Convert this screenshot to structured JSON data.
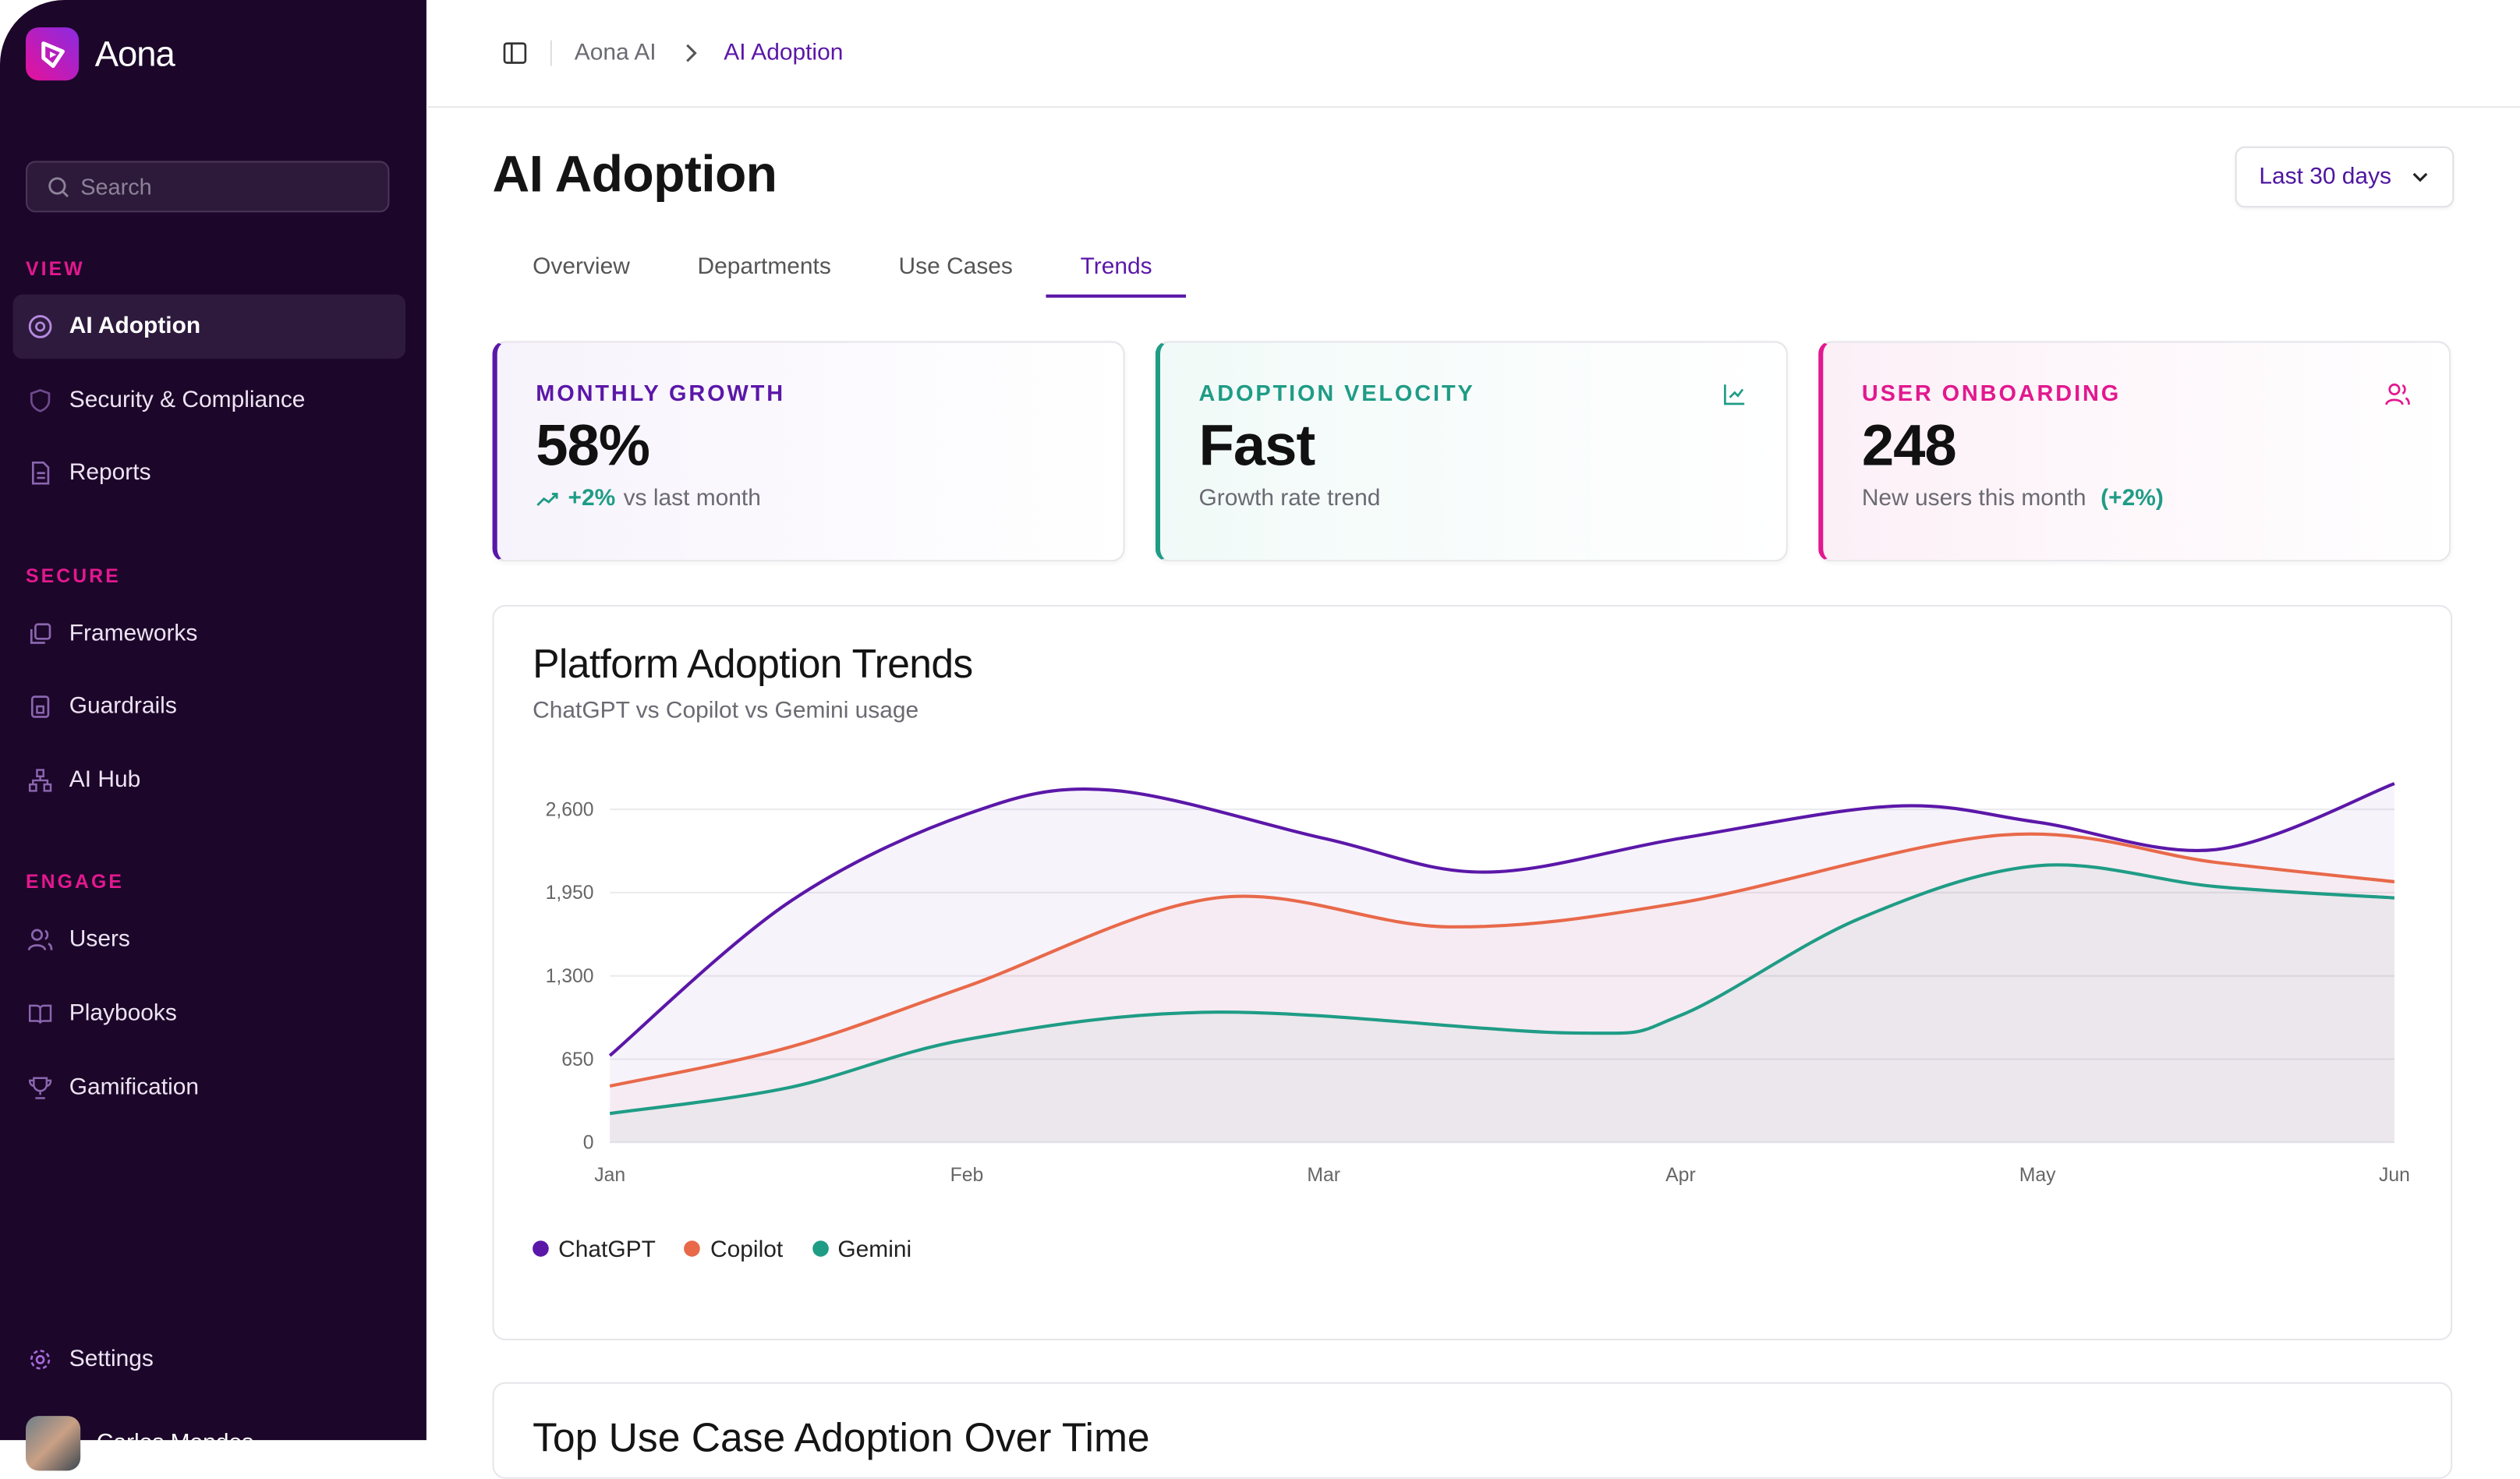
{
  "app": {
    "name": "Aona"
  },
  "sidebar": {
    "search_placeholder": "Search",
    "sections": [
      {
        "title": "VIEW",
        "items": [
          {
            "label": "AI Adoption",
            "icon": "aperture-icon",
            "active": true
          },
          {
            "label": "Security & Compliance",
            "icon": "shield-icon"
          },
          {
            "label": "Reports",
            "icon": "file-icon"
          }
        ]
      },
      {
        "title": "SECURE",
        "items": [
          {
            "label": "Frameworks",
            "icon": "layers-icon"
          },
          {
            "label": "Guardrails",
            "icon": "lock-icon"
          },
          {
            "label": "AI Hub",
            "icon": "network-icon"
          }
        ]
      },
      {
        "title": "ENGAGE",
        "items": [
          {
            "label": "Users",
            "icon": "user-icon"
          },
          {
            "label": "Playbooks",
            "icon": "book-icon"
          },
          {
            "label": "Gamification",
            "icon": "trophy-icon"
          }
        ]
      }
    ],
    "settings": "Settings",
    "user_name": "Carlos Mendes"
  },
  "breadcrumb": {
    "parent": "Aona AI",
    "current": "AI Adoption"
  },
  "page": {
    "title": "AI Adoption",
    "range": "Last 30 days"
  },
  "tabs": [
    "Overview",
    "Departments",
    "Use Cases",
    "Trends"
  ],
  "active_tab": "Trends",
  "cards": [
    {
      "label": "MONTHLY GROWTH",
      "value": "58%",
      "delta": "+2%",
      "sub": "vs last month",
      "color": "#5b17a8"
    },
    {
      "label": "ADOPTION VELOCITY",
      "value": "Fast",
      "sub": "Growth rate trend",
      "color": "#1f9c86"
    },
    {
      "label": "USER ONBOARDING",
      "value": "248",
      "sub": "New users this month",
      "delta": "(+2%)",
      "color": "#e2188f"
    }
  ],
  "chart_data": {
    "type": "line",
    "title": "Platform Adoption Trends",
    "subtitle": "ChatGPT vs Copilot vs Gemini usage",
    "categories": [
      "Jan",
      "Feb",
      "Mar",
      "Apr",
      "May",
      "Jun"
    ],
    "yticks": [
      "0",
      "650",
      "1,300",
      "1,950",
      "2,600"
    ],
    "ylim": [
      0,
      2600
    ],
    "grid": true,
    "legend": "bottom-left",
    "series": [
      {
        "name": "ChatGPT",
        "color": "#5b17a8",
        "points": [
          [
            0,
            678
          ],
          [
            0.5,
            1871
          ],
          [
            1,
            2562
          ],
          [
            1.4,
            2751
          ],
          [
            2,
            2374
          ],
          [
            2.45,
            2110
          ],
          [
            3,
            2374
          ],
          [
            3.6,
            2625
          ],
          [
            4,
            2500
          ],
          [
            4.5,
            2286
          ],
          [
            5,
            2801
          ]
        ]
      },
      {
        "name": "Copilot",
        "color": "#e8694a",
        "points": [
          [
            0,
            440
          ],
          [
            0.5,
            741
          ],
          [
            1,
            1218
          ],
          [
            1.7,
            1909
          ],
          [
            2.35,
            1683
          ],
          [
            3,
            1871
          ],
          [
            3.9,
            2399
          ],
          [
            4.5,
            2186
          ],
          [
            5,
            2035
          ]
        ]
      },
      {
        "name": "Gemini",
        "color": "#1f9c86",
        "points": [
          [
            0,
            226
          ],
          [
            0.5,
            427
          ],
          [
            1,
            804
          ],
          [
            1.7,
            1017
          ],
          [
            2.7,
            854
          ],
          [
            3,
            992
          ],
          [
            3.5,
            1746
          ],
          [
            4,
            2160
          ],
          [
            4.5,
            1997
          ],
          [
            5,
            1909
          ]
        ]
      }
    ]
  },
  "next_section_title": "Top Use Case Adoption Over Time"
}
